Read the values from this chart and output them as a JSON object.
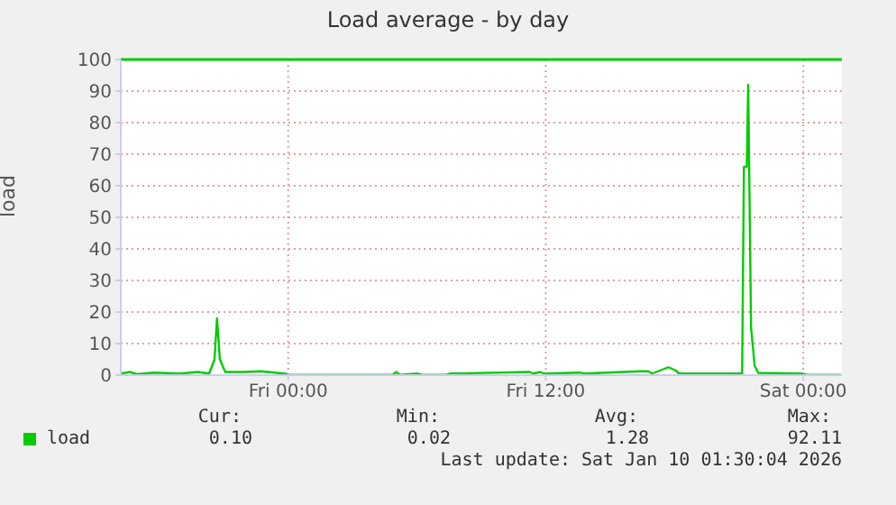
{
  "chart_data": {
    "type": "line",
    "title": "Load average - by day",
    "ylabel": "load",
    "x": [
      "2026-01-08T16:12",
      "2026-01-08T16:37",
      "2026-01-08T16:57",
      "2026-01-08T17:43",
      "2026-01-08T18:58",
      "2026-01-08T19:48",
      "2026-01-08T20:19",
      "2026-01-08T20:34",
      "2026-01-08T20:41",
      "2026-01-08T20:49",
      "2026-01-08T21:04",
      "2026-01-08T21:54",
      "2026-01-08T22:44",
      "2026-01-08T23:50",
      "2026-01-09T00:00",
      "2026-01-09T04:52",
      "2026-01-09T05:02",
      "2026-01-09T05:12",
      "2026-01-09T06:02",
      "2026-01-09T06:13",
      "2026-01-09T07:23",
      "2026-01-09T07:33",
      "2026-01-09T11:15",
      "2026-01-09T11:25",
      "2026-01-09T11:45",
      "2026-01-09T11:55",
      "2026-01-09T13:36",
      "2026-01-09T13:46",
      "2026-01-09T16:22",
      "2026-01-09T16:47",
      "2026-01-09T16:57",
      "2026-01-09T17:43",
      "2026-01-09T18:03",
      "2026-01-09T18:13",
      "2026-01-09T21:09",
      "2026-01-09T21:14",
      "2026-01-09T21:22",
      "2026-01-09T21:26",
      "2026-01-09T21:34",
      "2026-01-09T21:44",
      "2026-01-09T21:54",
      "2026-01-09T23:55",
      "2026-01-10T00:10",
      "2026-01-10T01:46"
    ],
    "series": [
      {
        "name": "load",
        "color": "#00cc00",
        "values": [
          0.5,
          1,
          0.3,
          0.8,
          0.5,
          1,
          0.5,
          5,
          18,
          5,
          1,
          1,
          1.2,
          0.5,
          0.1,
          0.1,
          1,
          0.1,
          0.5,
          0.1,
          0.1,
          0.5,
          1,
          0.5,
          1,
          0.5,
          0.8,
          0.5,
          1.2,
          1.2,
          0.5,
          2.5,
          1.5,
          0.5,
          0.5,
          66,
          66,
          92,
          15,
          3,
          0.7,
          0.5,
          0.1,
          0.1
        ]
      }
    ],
    "xlim": [
      "2026-01-08T16:12",
      "2026-01-10T01:48"
    ],
    "xticks": [
      {
        "value": "2026-01-09T00:00",
        "label": "Fri 00:00"
      },
      {
        "value": "2026-01-09T12:00",
        "label": "Fri 12:00"
      },
      {
        "value": "2026-01-10T00:00",
        "label": "Sat 00:00"
      }
    ],
    "ylim": [
      0,
      100
    ],
    "yticks": [
      0,
      10,
      20,
      30,
      40,
      50,
      60,
      70,
      80,
      90,
      100
    ],
    "grid": true,
    "legend": "bottom left",
    "marker": "none",
    "line_style": "solid",
    "ref_lines": [
      {
        "axis": "y",
        "value": 100,
        "color": "#00cc00"
      }
    ],
    "annotations": [
      "Cur:",
      "0.10",
      "Min:",
      "0.02",
      "Avg:",
      "1.28",
      "Max:",
      "92.11",
      "Last update: Sat Jan 10 01:30:04 2026"
    ]
  }
}
